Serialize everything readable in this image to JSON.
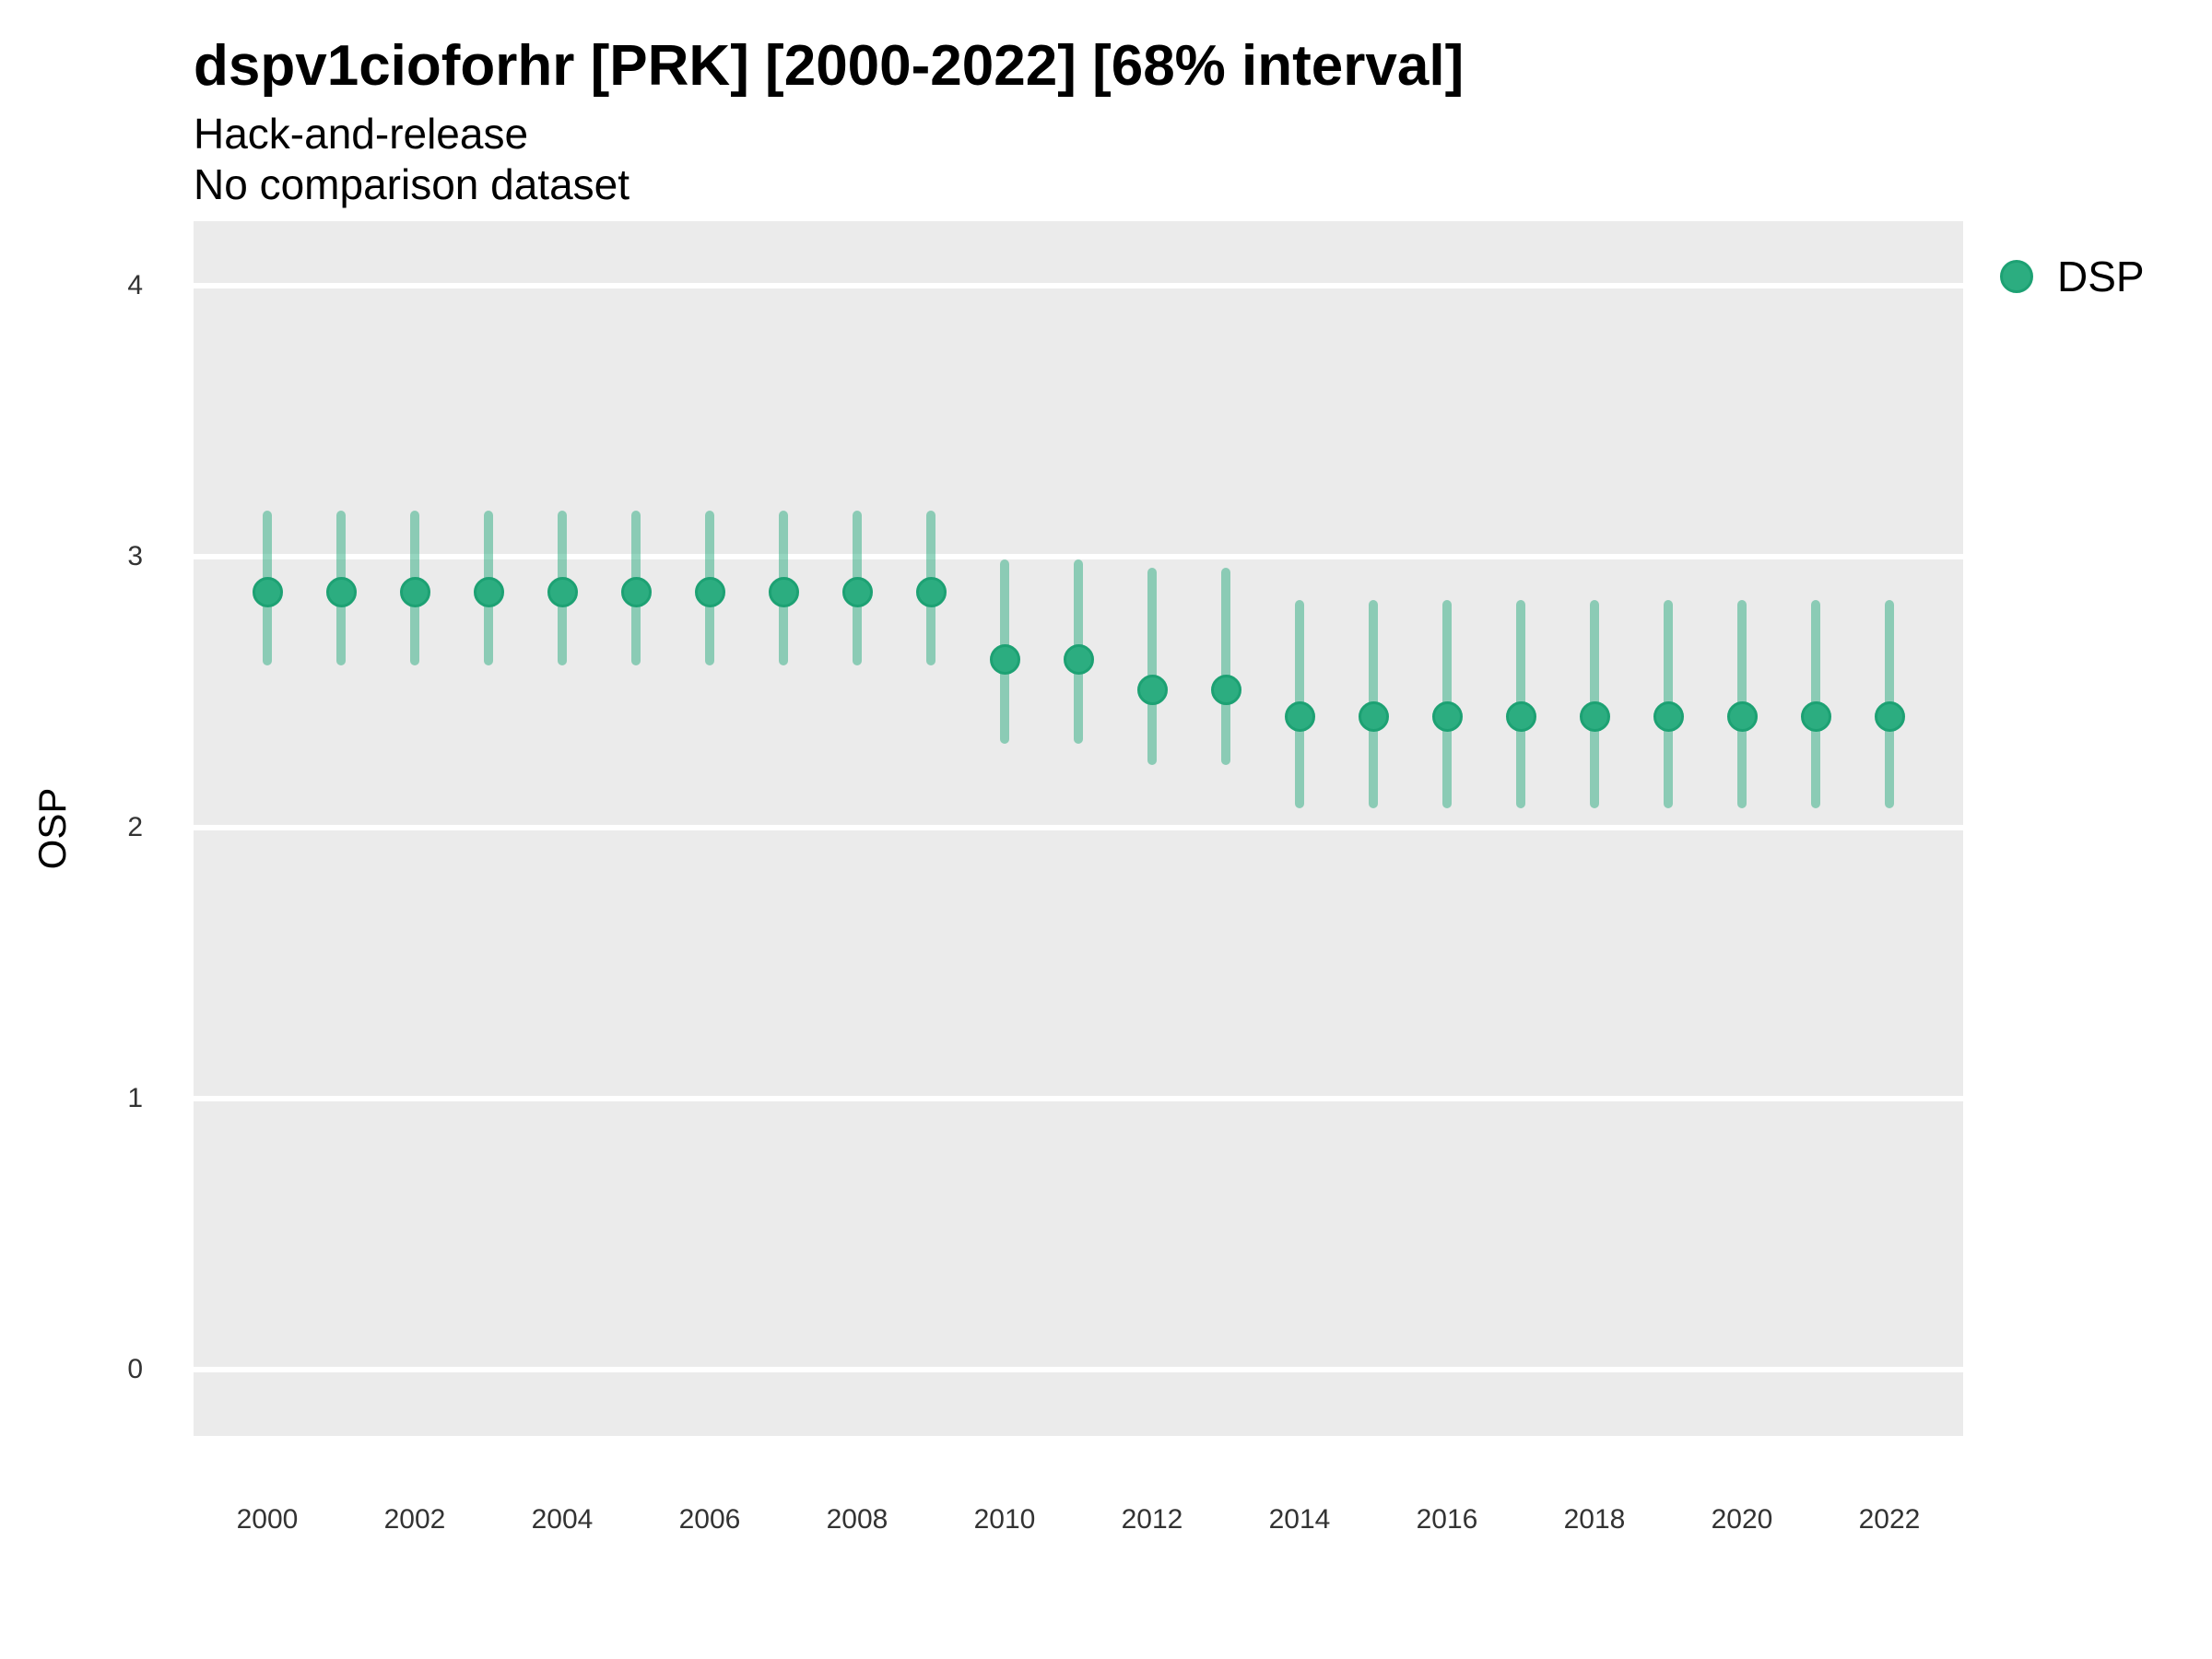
{
  "header": {
    "title": "dspv1cioforhr [PRK] [2000-2022] [68% interval]",
    "subtitle": "Hack-and-release",
    "subtitle2": "No comparison dataset"
  },
  "axes": {
    "y_title": "OSP"
  },
  "legend": {
    "position": "right",
    "items": [
      {
        "label": "DSP",
        "color": "#2cad80"
      }
    ]
  },
  "colors": {
    "point_fill": "#2cad80",
    "point_stroke": "#1da173",
    "interval_bar": "rgba(43, 171, 127, 0.5)",
    "panel_bg": "#ebebeb",
    "gridline": "#ffffff",
    "tick_text": "#333333"
  },
  "chart_data": {
    "type": "scatter",
    "title": "dspv1cioforhr [PRK] [2000-2022] [68% interval]",
    "subtitle": "Hack-and-release",
    "note": "No comparison dataset",
    "xlabel": "",
    "ylabel": "OSP",
    "interval_level": "68%",
    "grid": "major-horizontal-white-on-gray",
    "legend_position": "right",
    "xlim": [
      1999,
      2023
    ],
    "ylim": [
      -0.24,
      4.24
    ],
    "xticks": [
      2000,
      2002,
      2004,
      2006,
      2008,
      2010,
      2012,
      2014,
      2016,
      2018,
      2020,
      2022
    ],
    "yticks": [
      4,
      3,
      2,
      1,
      0
    ],
    "series": [
      {
        "name": "DSP",
        "x": [
          2000,
          2001,
          2002,
          2003,
          2004,
          2005,
          2006,
          2007,
          2008,
          2009,
          2010,
          2011,
          2012,
          2013,
          2014,
          2015,
          2016,
          2017,
          2018,
          2019,
          2020,
          2021,
          2022
        ],
        "y": [
          2.87,
          2.87,
          2.87,
          2.87,
          2.87,
          2.87,
          2.87,
          2.87,
          2.87,
          2.87,
          2.62,
          2.62,
          2.51,
          2.51,
          2.41,
          2.41,
          2.41,
          2.41,
          2.41,
          2.41,
          2.41,
          2.41,
          2.41
        ],
        "y_lo": [
          2.6,
          2.6,
          2.6,
          2.6,
          2.6,
          2.6,
          2.6,
          2.6,
          2.6,
          2.6,
          2.31,
          2.31,
          2.23,
          2.23,
          2.07,
          2.07,
          2.07,
          2.07,
          2.07,
          2.07,
          2.07,
          2.07,
          2.07
        ],
        "y_hi": [
          3.17,
          3.17,
          3.17,
          3.17,
          3.17,
          3.17,
          3.17,
          3.17,
          3.17,
          3.17,
          2.99,
          2.99,
          2.96,
          2.96,
          2.84,
          2.84,
          2.84,
          2.84,
          2.84,
          2.84,
          2.84,
          2.84,
          2.84
        ]
      }
    ]
  }
}
